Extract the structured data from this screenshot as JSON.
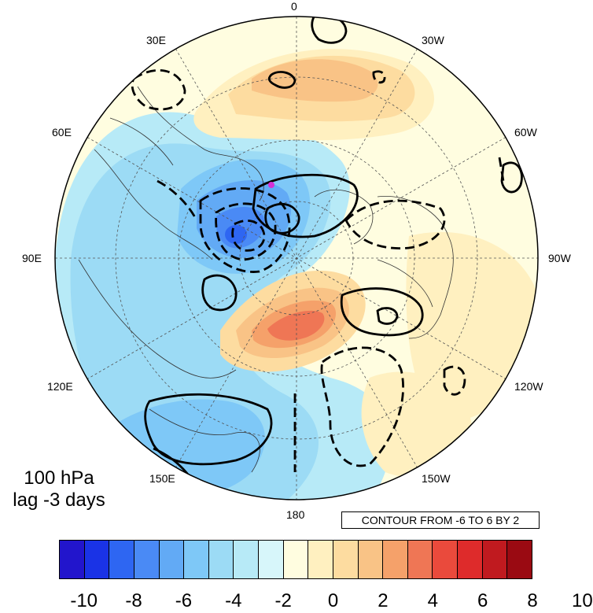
{
  "map": {
    "projection": "north polar stereographic",
    "longitude_labels": [
      "0",
      "30W",
      "60W",
      "90W",
      "120W",
      "150W",
      "180",
      "150E",
      "120E",
      "90E",
      "60E",
      "30E"
    ],
    "level_label": "100 hPa",
    "lag_label": "lag -3 days",
    "contour_info": "CONTOUR FROM -6 TO 6 BY 2",
    "shading_colors": [
      "#2215cc",
      "#1a33e6",
      "#2e66f2",
      "#4a8af5",
      "#62aaf5",
      "#7ec8f7",
      "#9cdbf5",
      "#b7eaf7",
      "#d7f6fa",
      "#fffde0",
      "#fff0c0",
      "#fddca0",
      "#f9c386",
      "#f5a16a",
      "#ef7655",
      "#ea4a3c",
      "#de2b2b",
      "#c01a1f",
      "#9a0a12"
    ],
    "colorbar_labels": [
      "-10",
      "-8",
      "-6",
      "-4",
      "-2",
      "0",
      "2",
      "4",
      "6",
      "8",
      "10"
    ],
    "marker_color": "#d62fd6"
  }
}
